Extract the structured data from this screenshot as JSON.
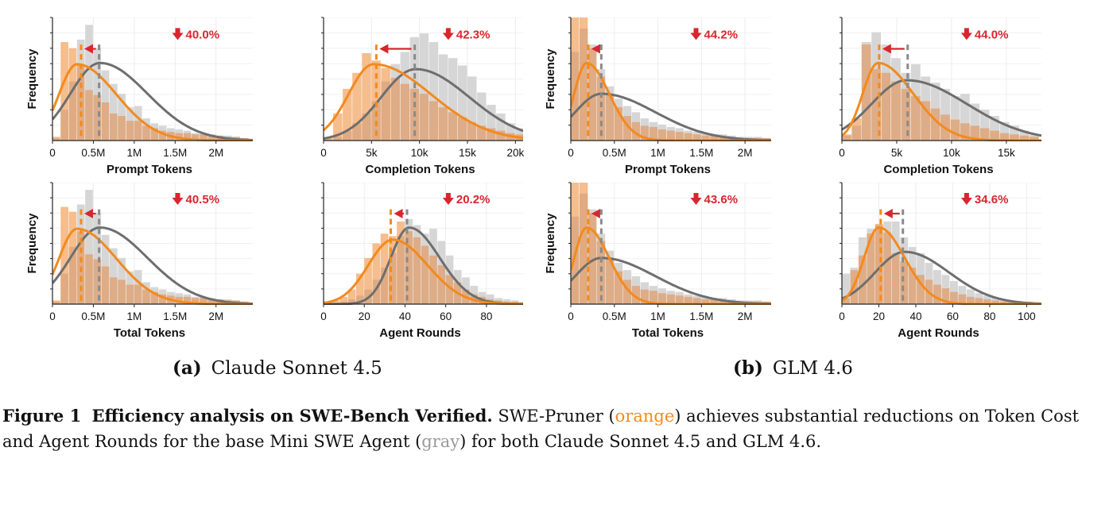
{
  "colors": {
    "pruner": "#f28a1e",
    "pruner_fill": "#f5b987",
    "base": "#6e6e6e",
    "base_fill": "#d4d4d4",
    "overlap_fill": "#deaa82",
    "reduction": "#d8262e"
  },
  "captions": {
    "a_label": "(a)",
    "a_text": "Claude Sonnet 4.5",
    "b_label": "(b)",
    "b_text": "GLM 4.6",
    "figure_label": "Figure 1",
    "figure_title": "Efficiency analysis on SWE-Bench Verified.",
    "part1": "SWE-Pruner (",
    "orange_word": "orange",
    "part2": ") achieves substantial reductions on Token Cost and Agent Rounds for the base Mini SWE Agent (",
    "gray_word": "gray",
    "part3": ") for both Claude Sonnet 4.5 and GLM 4.6."
  },
  "chart_data": [
    {
      "type": "histogram",
      "group": "Claude Sonnet 4.5",
      "xlabel": "Prompt Tokens",
      "ylabel": "Frequency",
      "xlim": [
        0,
        2.45
      ],
      "xticks": [
        0,
        0.5,
        1,
        1.5,
        2
      ],
      "xticklabels": [
        "0",
        "0.5M",
        "1M",
        "1.5M",
        "2M"
      ],
      "bin_width": 0.1,
      "pruner_bins": [
        0.03,
        0.8,
        0.75,
        0.61,
        0.41,
        0.37,
        0.31,
        0.22,
        0.2,
        0.16,
        0.16,
        0.12,
        0.1,
        0.08,
        0.07,
        0.06,
        0.06,
        0.05,
        0.05,
        0.04,
        0.04,
        0.03,
        0.03,
        0.02
      ],
      "base_bins": [
        0.02,
        0.25,
        0.48,
        0.82,
        0.94,
        0.75,
        0.57,
        0.46,
        0.38,
        0.27,
        0.28,
        0.18,
        0.14,
        0.12,
        0.1,
        0.09,
        0.08,
        0.06,
        0.06,
        0.05,
        0.04,
        0.04,
        0.03,
        0.02
      ],
      "pruner_curve": {
        "peak_x": 0.3,
        "peak_y": 0.62,
        "sl": 0.22,
        "sr": 0.48,
        "base": 0.0
      },
      "base_curve": {
        "peak_x": 0.58,
        "peak_y": 0.63,
        "sl": 0.36,
        "sr": 0.58,
        "base": 0.0
      },
      "pruner_median": 0.35,
      "base_median": 0.57,
      "reduction": "40.0%"
    },
    {
      "type": "histogram",
      "group": "Claude Sonnet 4.5",
      "xlabel": "Completion Tokens",
      "ylabel": "",
      "xlim": [
        0,
        20.8
      ],
      "xticks": [
        0,
        5,
        10,
        15,
        20
      ],
      "xticklabels": [
        "0",
        "5k",
        "10k",
        "15k",
        "20k"
      ],
      "bin_width": 1,
      "pruner_bins": [
        0.02,
        0.22,
        0.42,
        0.55,
        0.71,
        0.65,
        0.59,
        0.51,
        0.46,
        0.42,
        0.38,
        0.32,
        0.27,
        0.23,
        0.19,
        0.15,
        0.12,
        0.1,
        0.08,
        0.06,
        0.05
      ],
      "base_bins": [
        0.01,
        0.03,
        0.08,
        0.14,
        0.22,
        0.32,
        0.48,
        0.62,
        0.72,
        0.84,
        0.87,
        0.8,
        0.7,
        0.67,
        0.61,
        0.52,
        0.39,
        0.29,
        0.22,
        0.14,
        0.1
      ],
      "pruner_curve": {
        "peak_x": 5.2,
        "peak_y": 0.62,
        "sl": 2.6,
        "sr": 6.0,
        "base": 0.0
      },
      "base_curve": {
        "peak_x": 9.6,
        "peak_y": 0.58,
        "sl": 3.6,
        "sr": 5.6,
        "base": 0.0
      },
      "pruner_median": 5.5,
      "base_median": 9.5,
      "reduction": "42.3%"
    },
    {
      "type": "histogram",
      "group": "GLM 4.6",
      "xlabel": "Prompt Tokens",
      "ylabel": "Frequency",
      "xlim": [
        0,
        2.3
      ],
      "xticks": [
        0,
        0.5,
        1,
        1.5,
        2
      ],
      "xticklabels": [
        "0",
        "0.5M",
        "1M",
        "1.5M",
        "2M"
      ],
      "bin_width": 0.1,
      "pruner_bins": [
        1.0,
        1.0,
        0.75,
        0.52,
        0.37,
        0.27,
        0.2,
        0.15,
        0.12,
        0.11,
        0.09,
        0.08,
        0.07,
        0.06,
        0.05,
        0.04,
        0.04,
        0.03,
        0.03,
        0.02,
        0.02,
        0.02,
        0.02
      ],
      "base_bins": [
        0.72,
        0.91,
        0.78,
        0.58,
        0.44,
        0.34,
        0.28,
        0.23,
        0.18,
        0.15,
        0.13,
        0.11,
        0.1,
        0.08,
        0.07,
        0.06,
        0.05,
        0.05,
        0.04,
        0.03,
        0.03,
        0.03,
        0.02
      ],
      "pruner_curve": {
        "peak_x": 0.18,
        "peak_y": 0.63,
        "sl": 0.14,
        "sr": 0.26,
        "base": 0.0
      },
      "base_curve": {
        "peak_x": 0.35,
        "peak_y": 0.38,
        "sl": 0.3,
        "sr": 0.62,
        "base": 0.0
      },
      "pruner_median": 0.2,
      "base_median": 0.35,
      "reduction": "44.2%"
    },
    {
      "type": "histogram",
      "group": "GLM 4.6",
      "xlabel": "Completion Tokens",
      "ylabel": "",
      "xlim": [
        0,
        18.2
      ],
      "xticks": [
        0,
        5,
        10,
        15
      ],
      "xticklabels": [
        "0",
        "5k",
        "10k",
        "15k"
      ],
      "bin_width": 0.9,
      "pruner_bins": [
        0.05,
        0.18,
        0.78,
        0.58,
        0.55,
        0.48,
        0.42,
        0.36,
        0.32,
        0.26,
        0.21,
        0.17,
        0.14,
        0.12,
        0.1,
        0.08,
        0.06,
        0.05,
        0.04,
        0.03
      ],
      "base_bins": [
        0.04,
        0.12,
        0.8,
        0.88,
        0.78,
        0.67,
        0.55,
        0.62,
        0.52,
        0.47,
        0.42,
        0.36,
        0.38,
        0.3,
        0.25,
        0.2,
        0.15,
        0.12,
        0.08,
        0.05
      ],
      "pruner_curve": {
        "peak_x": 3.3,
        "peak_y": 0.63,
        "sl": 1.4,
        "sr": 3.2,
        "base": 0.0
      },
      "base_curve": {
        "peak_x": 5.9,
        "peak_y": 0.49,
        "sl": 3.2,
        "sr": 5.5,
        "base": 0.0
      },
      "pruner_median": 3.4,
      "base_median": 6.0,
      "reduction": "44.0%"
    },
    {
      "type": "histogram",
      "group": "Claude Sonnet 4.5",
      "xlabel": "Total Tokens",
      "ylabel": "Frequency",
      "xlim": [
        0,
        2.45
      ],
      "xticks": [
        0,
        0.5,
        1,
        1.5,
        2
      ],
      "xticklabels": [
        "0",
        "0.5M",
        "1M",
        "1.5M",
        "2M"
      ],
      "bin_width": 0.1,
      "pruner_bins": [
        0.03,
        0.8,
        0.76,
        0.6,
        0.41,
        0.37,
        0.31,
        0.22,
        0.2,
        0.16,
        0.16,
        0.12,
        0.1,
        0.08,
        0.07,
        0.06,
        0.06,
        0.05,
        0.05,
        0.04,
        0.04,
        0.03,
        0.03,
        0.02
      ],
      "base_bins": [
        0.02,
        0.25,
        0.47,
        0.82,
        0.94,
        0.75,
        0.57,
        0.46,
        0.38,
        0.27,
        0.28,
        0.18,
        0.14,
        0.12,
        0.1,
        0.09,
        0.08,
        0.06,
        0.06,
        0.05,
        0.04,
        0.04,
        0.03,
        0.02
      ],
      "pruner_curve": {
        "peak_x": 0.3,
        "peak_y": 0.62,
        "sl": 0.22,
        "sr": 0.48,
        "base": 0.0
      },
      "base_curve": {
        "peak_x": 0.58,
        "peak_y": 0.63,
        "sl": 0.36,
        "sr": 0.58,
        "base": 0.0
      },
      "pruner_median": 0.35,
      "base_median": 0.57,
      "reduction": "40.5%"
    },
    {
      "type": "histogram",
      "group": "Claude Sonnet 4.5",
      "xlabel": "Agent Rounds",
      "ylabel": "",
      "xlim": [
        0,
        98
      ],
      "xticks": [
        0,
        20,
        40,
        60,
        80
      ],
      "xticklabels": [
        "0",
        "20",
        "40",
        "60",
        "80"
      ],
      "bin_width": 4,
      "pruner_bins": [
        0.01,
        0.03,
        0.06,
        0.12,
        0.25,
        0.38,
        0.5,
        0.58,
        0.56,
        0.68,
        0.6,
        0.55,
        0.48,
        0.4,
        0.32,
        0.24,
        0.18,
        0.12,
        0.08,
        0.06,
        0.04,
        0.03,
        0.02,
        0.02,
        0.01
      ],
      "base_bins": [
        0.0,
        0.01,
        0.02,
        0.04,
        0.07,
        0.12,
        0.2,
        0.3,
        0.42,
        0.56,
        0.7,
        0.65,
        0.58,
        0.62,
        0.52,
        0.4,
        0.28,
        0.22,
        0.15,
        0.1,
        0.08,
        0.05,
        0.04,
        0.03,
        0.02
      ],
      "pruner_curve": {
        "peak_x": 34,
        "peak_y": 0.53,
        "sl": 12,
        "sr": 17,
        "base": 0.0
      },
      "base_curve": {
        "peak_x": 42,
        "peak_y": 0.63,
        "sl": 9,
        "sr": 15,
        "base": 0.0
      },
      "pruner_median": 33,
      "base_median": 41,
      "reduction": "20.2%"
    },
    {
      "type": "histogram",
      "group": "GLM 4.6",
      "xlabel": "Total Tokens",
      "ylabel": "Frequency",
      "xlim": [
        0,
        2.3
      ],
      "xticks": [
        0,
        0.5,
        1,
        1.5,
        2
      ],
      "xticklabels": [
        "0",
        "0.5M",
        "1M",
        "1.5M",
        "2M"
      ],
      "bin_width": 0.1,
      "pruner_bins": [
        1.0,
        1.0,
        0.75,
        0.52,
        0.37,
        0.27,
        0.2,
        0.15,
        0.12,
        0.11,
        0.09,
        0.08,
        0.07,
        0.06,
        0.05,
        0.04,
        0.04,
        0.03,
        0.03,
        0.02,
        0.02,
        0.02,
        0.02
      ],
      "base_bins": [
        0.72,
        0.91,
        0.78,
        0.58,
        0.44,
        0.34,
        0.28,
        0.23,
        0.18,
        0.15,
        0.13,
        0.11,
        0.1,
        0.08,
        0.07,
        0.06,
        0.05,
        0.05,
        0.04,
        0.03,
        0.03,
        0.03,
        0.02
      ],
      "pruner_curve": {
        "peak_x": 0.18,
        "peak_y": 0.63,
        "sl": 0.14,
        "sr": 0.26,
        "base": 0.0
      },
      "base_curve": {
        "peak_x": 0.35,
        "peak_y": 0.38,
        "sl": 0.3,
        "sr": 0.62,
        "base": 0.0
      },
      "pruner_median": 0.2,
      "base_median": 0.35,
      "reduction": "43.6%"
    },
    {
      "type": "histogram",
      "group": "GLM 4.6",
      "xlabel": "Agent Rounds",
      "ylabel": "",
      "xlim": [
        0,
        108
      ],
      "xticks": [
        0,
        20,
        40,
        60,
        80,
        100
      ],
      "xticklabels": [
        "0",
        "20",
        "40",
        "60",
        "80",
        "100"
      ],
      "bin_width": 4.5,
      "pruner_bins": [
        0.05,
        0.28,
        0.4,
        0.58,
        0.66,
        0.59,
        0.42,
        0.35,
        0.3,
        0.24,
        0.2,
        0.16,
        0.13,
        0.1,
        0.08,
        0.06,
        0.05,
        0.04,
        0.03,
        0.02,
        0.02,
        0.01,
        0.01,
        0.01
      ],
      "base_bins": [
        0.25,
        0.3,
        0.55,
        0.62,
        0.65,
        0.68,
        0.68,
        0.55,
        0.47,
        0.42,
        0.34,
        0.28,
        0.24,
        0.19,
        0.15,
        0.12,
        0.09,
        0.07,
        0.05,
        0.04,
        0.03,
        0.02,
        0.02,
        0.01
      ],
      "pruner_curve": {
        "peak_x": 20,
        "peak_y": 0.63,
        "sl": 8,
        "sr": 14,
        "base": 0.0
      },
      "base_curve": {
        "peak_x": 34,
        "peak_y": 0.43,
        "sl": 16,
        "sr": 24,
        "base": 0.0
      },
      "pruner_median": 21,
      "base_median": 33,
      "reduction": "34.6%"
    }
  ]
}
